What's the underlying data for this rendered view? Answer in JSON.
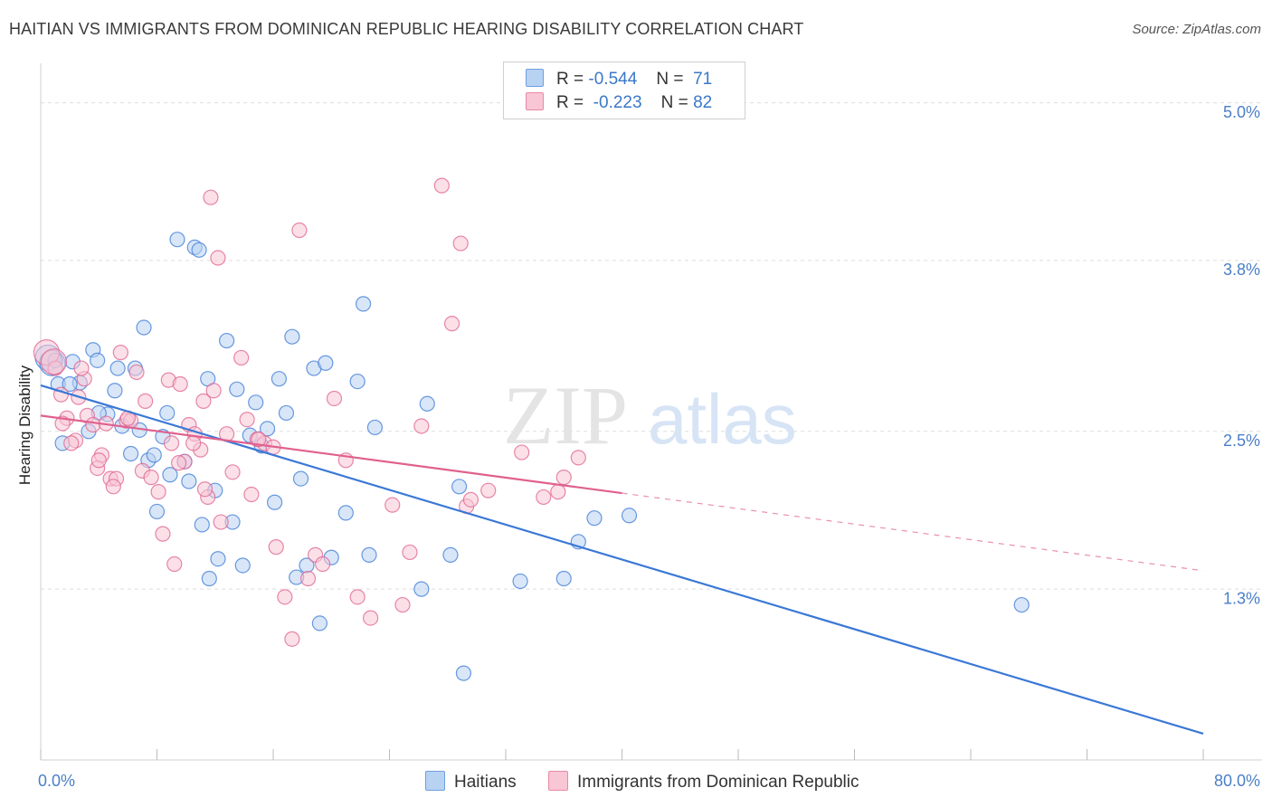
{
  "title": "HAITIAN VS IMMIGRANTS FROM DOMINICAN REPUBLIC HEARING DISABILITY CORRELATION CHART",
  "source": "Source: ZipAtlas.com",
  "watermark": {
    "zip": "ZIP",
    "atlas": "atlas"
  },
  "legend": {
    "r_label": "R =",
    "n_label": "N =",
    "rows": [
      {
        "r": "-0.544",
        "n": "71",
        "fill": "#b8d2f2",
        "stroke": "#6f9fe0"
      },
      {
        "r": "-0.223",
        "n": "82",
        "fill": "#f8c6d5",
        "stroke": "#e889a8"
      }
    ]
  },
  "chart_data": {
    "type": "scatter",
    "ylabel": "Hearing Disability",
    "xlim": [
      0,
      80
    ],
    "ylim": [
      0,
      5.3
    ],
    "x_tick_labels": [
      "0.0%",
      "80.0%"
    ],
    "y_ticks": [
      {
        "value": 1.3,
        "label": "1.3%"
      },
      {
        "value": 2.5,
        "label": "2.5%"
      },
      {
        "value": 3.8,
        "label": "3.8%"
      },
      {
        "value": 5.0,
        "label": "5.0%"
      }
    ],
    "series": [
      {
        "name": "Haitians",
        "color": "#3a78d6",
        "fill": "#b8d2f2",
        "trend": {
          "x": [
            0,
            80
          ],
          "y": [
            2.85,
            0.2
          ],
          "dashed_x": null
        },
        "points": [
          [
            0.5,
            3.06
          ],
          [
            0.8,
            3.02
          ],
          [
            1.2,
            2.86
          ],
          [
            1.5,
            2.41
          ],
          [
            2.2,
            3.03
          ],
          [
            2.7,
            2.87
          ],
          [
            3.3,
            2.5
          ],
          [
            3.6,
            3.12
          ],
          [
            3.9,
            3.04
          ],
          [
            4.6,
            2.63
          ],
          [
            5.1,
            2.81
          ],
          [
            5.3,
            2.98
          ],
          [
            5.6,
            2.54
          ],
          [
            6.2,
            2.33
          ],
          [
            6.5,
            2.98
          ],
          [
            6.8,
            2.51
          ],
          [
            7.1,
            3.29
          ],
          [
            7.4,
            2.28
          ],
          [
            7.8,
            2.32
          ],
          [
            8.0,
            1.89
          ],
          [
            8.4,
            2.46
          ],
          [
            8.7,
            2.64
          ],
          [
            8.9,
            2.17
          ],
          [
            9.4,
            3.96
          ],
          [
            9.9,
            2.27
          ],
          [
            10.2,
            2.12
          ],
          [
            10.6,
            3.9
          ],
          [
            10.9,
            3.88
          ],
          [
            11.1,
            1.79
          ],
          [
            11.6,
            1.38
          ],
          [
            12.0,
            2.05
          ],
          [
            12.2,
            1.53
          ],
          [
            12.8,
            3.19
          ],
          [
            13.2,
            1.81
          ],
          [
            13.5,
            2.82
          ],
          [
            13.9,
            1.48
          ],
          [
            14.4,
            2.47
          ],
          [
            14.8,
            2.72
          ],
          [
            15.2,
            2.39
          ],
          [
            15.6,
            2.52
          ],
          [
            16.1,
            1.96
          ],
          [
            16.4,
            2.9
          ],
          [
            16.9,
            2.64
          ],
          [
            17.3,
            3.22
          ],
          [
            17.6,
            1.39
          ],
          [
            17.9,
            2.14
          ],
          [
            18.3,
            1.48
          ],
          [
            18.8,
            2.98
          ],
          [
            19.2,
            1.04
          ],
          [
            19.6,
            3.02
          ],
          [
            20.0,
            1.54
          ],
          [
            21.0,
            1.88
          ],
          [
            21.8,
            2.88
          ],
          [
            22.2,
            3.47
          ],
          [
            22.6,
            1.56
          ],
          [
            26.2,
            1.3
          ],
          [
            26.6,
            2.71
          ],
          [
            28.2,
            1.56
          ],
          [
            28.8,
            2.08
          ],
          [
            29.1,
            0.66
          ],
          [
            33.0,
            1.36
          ],
          [
            36.0,
            1.38
          ],
          [
            37.0,
            1.66
          ],
          [
            38.1,
            1.84
          ],
          [
            40.5,
            1.86
          ],
          [
            67.5,
            1.18
          ],
          [
            1.0,
            3.04
          ],
          [
            2.0,
            2.86
          ],
          [
            11.5,
            2.9
          ],
          [
            4.0,
            2.64
          ],
          [
            23.0,
            2.53
          ]
        ]
      },
      {
        "name": "Immigrants from Dominican Republic",
        "color": "#e0608e",
        "fill": "#f8c6d5",
        "trend": {
          "x": [
            0,
            40
          ],
          "y": [
            2.62,
            2.03
          ],
          "dashed_x": [
            40,
            80
          ]
        },
        "points": [
          [
            0.4,
            3.1
          ],
          [
            1.0,
            2.98
          ],
          [
            1.4,
            2.78
          ],
          [
            1.8,
            2.6
          ],
          [
            2.4,
            2.43
          ],
          [
            2.6,
            2.76
          ],
          [
            3.0,
            2.9
          ],
          [
            3.2,
            2.62
          ],
          [
            3.6,
            2.55
          ],
          [
            3.9,
            2.22
          ],
          [
            4.2,
            2.32
          ],
          [
            4.5,
            2.56
          ],
          [
            4.8,
            2.14
          ],
          [
            5.2,
            2.14
          ],
          [
            5.5,
            3.1
          ],
          [
            5.9,
            2.58
          ],
          [
            6.2,
            2.58
          ],
          [
            6.6,
            2.95
          ],
          [
            7.0,
            2.2
          ],
          [
            7.2,
            2.73
          ],
          [
            7.6,
            2.15
          ],
          [
            8.1,
            2.04
          ],
          [
            8.4,
            1.72
          ],
          [
            8.8,
            2.89
          ],
          [
            9.0,
            2.41
          ],
          [
            9.2,
            1.49
          ],
          [
            9.6,
            2.86
          ],
          [
            9.9,
            2.27
          ],
          [
            10.2,
            2.55
          ],
          [
            10.6,
            2.48
          ],
          [
            11.0,
            2.36
          ],
          [
            11.2,
            2.73
          ],
          [
            11.5,
            2.0
          ],
          [
            11.7,
            4.28
          ],
          [
            11.9,
            2.81
          ],
          [
            12.2,
            3.82
          ],
          [
            12.4,
            1.81
          ],
          [
            12.8,
            2.48
          ],
          [
            13.2,
            2.19
          ],
          [
            13.8,
            3.06
          ],
          [
            14.2,
            2.59
          ],
          [
            14.5,
            2.02
          ],
          [
            14.9,
            2.44
          ],
          [
            15.4,
            2.41
          ],
          [
            16.2,
            1.62
          ],
          [
            16.8,
            1.24
          ],
          [
            17.3,
            0.92
          ],
          [
            17.8,
            4.03
          ],
          [
            18.4,
            1.38
          ],
          [
            18.9,
            1.56
          ],
          [
            19.4,
            1.49
          ],
          [
            20.2,
            2.75
          ],
          [
            21.0,
            2.28
          ],
          [
            21.8,
            1.24
          ],
          [
            22.7,
            1.08
          ],
          [
            24.2,
            1.94
          ],
          [
            24.9,
            1.18
          ],
          [
            25.4,
            1.58
          ],
          [
            26.2,
            2.54
          ],
          [
            27.6,
            4.37
          ],
          [
            28.3,
            3.32
          ],
          [
            28.9,
            3.93
          ],
          [
            29.3,
            1.93
          ],
          [
            29.6,
            1.98
          ],
          [
            30.8,
            2.05
          ],
          [
            33.1,
            2.34
          ],
          [
            34.6,
            2.0
          ],
          [
            35.6,
            2.04
          ],
          [
            36.0,
            2.15
          ],
          [
            37.0,
            2.3
          ],
          [
            1.5,
            2.56
          ],
          [
            2.1,
            2.41
          ],
          [
            4.0,
            2.28
          ],
          [
            5.0,
            2.08
          ],
          [
            6.0,
            2.6
          ],
          [
            9.5,
            2.26
          ],
          [
            10.5,
            2.41
          ],
          [
            11.3,
            2.06
          ],
          [
            15.0,
            2.44
          ],
          [
            16.0,
            2.38
          ],
          [
            0.9,
            3.03
          ],
          [
            2.8,
            2.98
          ]
        ]
      }
    ]
  }
}
